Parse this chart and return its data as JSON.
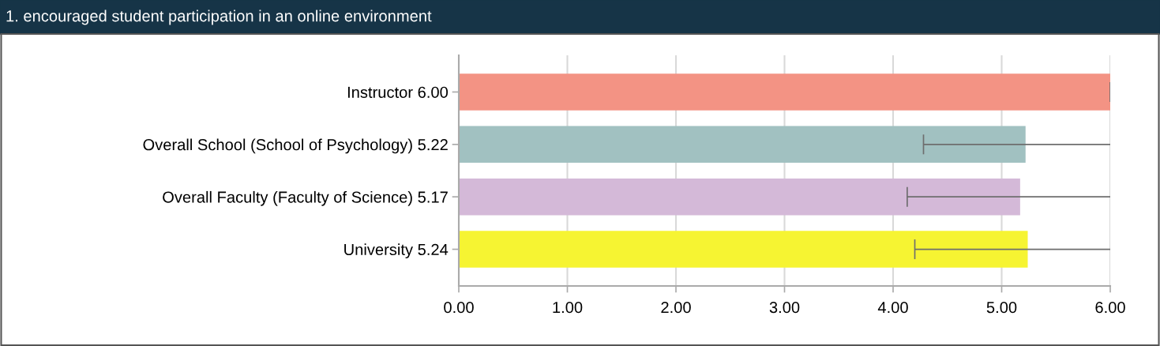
{
  "chart_data": {
    "type": "bar",
    "orientation": "horizontal",
    "title": "1. encouraged student participation in an online environment",
    "categories": [
      "Instructor 6.00",
      "Overall School (School of Psychology) 5.22",
      "Overall Faculty (Faculty of Science) 5.17",
      "University 5.24"
    ],
    "values": [
      6.0,
      5.22,
      5.17,
      5.24
    ],
    "colors": [
      "#f39384",
      "#a1c1c1",
      "#d4b9d8",
      "#f6f432"
    ],
    "errors": [
      [
        6.0,
        6.0
      ],
      [
        4.28,
        6.0
      ],
      [
        4.13,
        6.0
      ],
      [
        4.2,
        6.0
      ]
    ],
    "xlim": [
      0,
      6
    ],
    "xticks": [
      {
        "value": 0,
        "label": "0.00"
      },
      {
        "value": 1,
        "label": "1.00"
      },
      {
        "value": 2,
        "label": "2.00"
      },
      {
        "value": 3,
        "label": "3.00"
      },
      {
        "value": 4,
        "label": "4.00"
      },
      {
        "value": 5,
        "label": "5.00"
      },
      {
        "value": 6,
        "label": "6.00"
      }
    ],
    "grid": "x",
    "legend": false
  }
}
